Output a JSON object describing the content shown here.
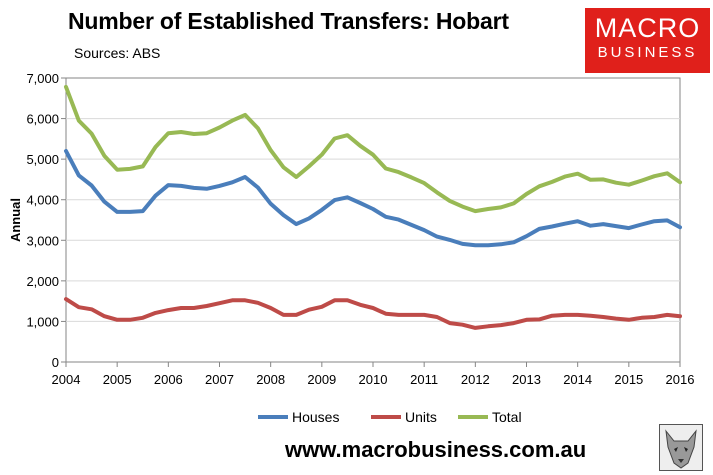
{
  "header": {
    "title": "Number of Established Transfers: Hobart",
    "subtitle": "Sources: ABS"
  },
  "logo": {
    "line1": "MACRO",
    "line2": "BUSINESS",
    "color": "#e0201b"
  },
  "footer": {
    "url": "www.macrobusiness.com.au"
  },
  "colors": {
    "houses": "#4a7ebb",
    "units": "#be4b48",
    "total": "#98b954",
    "grid": "#d9d9d9",
    "axis": "#868686"
  },
  "chart_data": {
    "type": "line",
    "ylabel": "Annual",
    "xlabel": "",
    "ylim": [
      0,
      7000
    ],
    "y_ticks": [
      "0",
      "1,000",
      "2,000",
      "3,000",
      "4,000",
      "5,000",
      "6,000",
      "7,000"
    ],
    "x_ticks": [
      "2004",
      "2005",
      "2006",
      "2007",
      "2008",
      "2009",
      "2010",
      "2011",
      "2012",
      "2013",
      "2014",
      "2015",
      "2016"
    ],
    "xlim": [
      2004,
      2016
    ],
    "legend_position": "bottom",
    "x": [
      2004.0,
      2004.25,
      2004.5,
      2004.75,
      2005.0,
      2005.25,
      2005.5,
      2005.75,
      2006.0,
      2006.25,
      2006.5,
      2006.75,
      2007.0,
      2007.25,
      2007.5,
      2007.75,
      2008.0,
      2008.25,
      2008.5,
      2008.75,
      2009.0,
      2009.25,
      2009.5,
      2009.75,
      2010.0,
      2010.25,
      2010.5,
      2010.75,
      2011.0,
      2011.25,
      2011.5,
      2011.75,
      2012.0,
      2012.25,
      2012.5,
      2012.75,
      2013.0,
      2013.25,
      2013.5,
      2013.75,
      2014.0,
      2014.25,
      2014.5,
      2014.75,
      2015.0,
      2015.25,
      2015.5,
      2015.75,
      2016.0
    ],
    "series": [
      {
        "name": "Houses",
        "color": "#4a7ebb",
        "values": [
          5200,
          4600,
          4350,
          3950,
          3700,
          3700,
          3720,
          4100,
          4360,
          4340,
          4290,
          4270,
          4340,
          4430,
          4560,
          4300,
          3900,
          3620,
          3400,
          3540,
          3750,
          3990,
          4060,
          3920,
          3770,
          3580,
          3510,
          3380,
          3250,
          3090,
          3010,
          2910,
          2880,
          2880,
          2900,
          2950,
          3100,
          3280,
          3340,
          3410,
          3470,
          3360,
          3400,
          3350,
          3300,
          3390,
          3470,
          3490,
          3320
        ]
      },
      {
        "name": "Units",
        "color": "#be4b48",
        "values": [
          1550,
          1350,
          1300,
          1130,
          1040,
          1040,
          1090,
          1210,
          1280,
          1330,
          1330,
          1380,
          1450,
          1520,
          1520,
          1460,
          1330,
          1160,
          1160,
          1290,
          1360,
          1520,
          1520,
          1410,
          1330,
          1190,
          1160,
          1160,
          1160,
          1110,
          960,
          920,
          840,
          880,
          910,
          960,
          1040,
          1050,
          1140,
          1160,
          1160,
          1140,
          1110,
          1070,
          1040,
          1090,
          1110,
          1160,
          1130
        ]
      },
      {
        "name": "Total",
        "color": "#98b954",
        "values": [
          6780,
          5950,
          5630,
          5080,
          4740,
          4760,
          4820,
          5300,
          5640,
          5670,
          5620,
          5640,
          5780,
          5950,
          6090,
          5760,
          5220,
          4800,
          4560,
          4820,
          5110,
          5510,
          5590,
          5330,
          5110,
          4770,
          4680,
          4550,
          4410,
          4180,
          3970,
          3830,
          3720,
          3770,
          3810,
          3910,
          4140,
          4330,
          4440,
          4570,
          4640,
          4490,
          4500,
          4420,
          4370,
          4470,
          4580,
          4650,
          4430
        ]
      }
    ]
  }
}
